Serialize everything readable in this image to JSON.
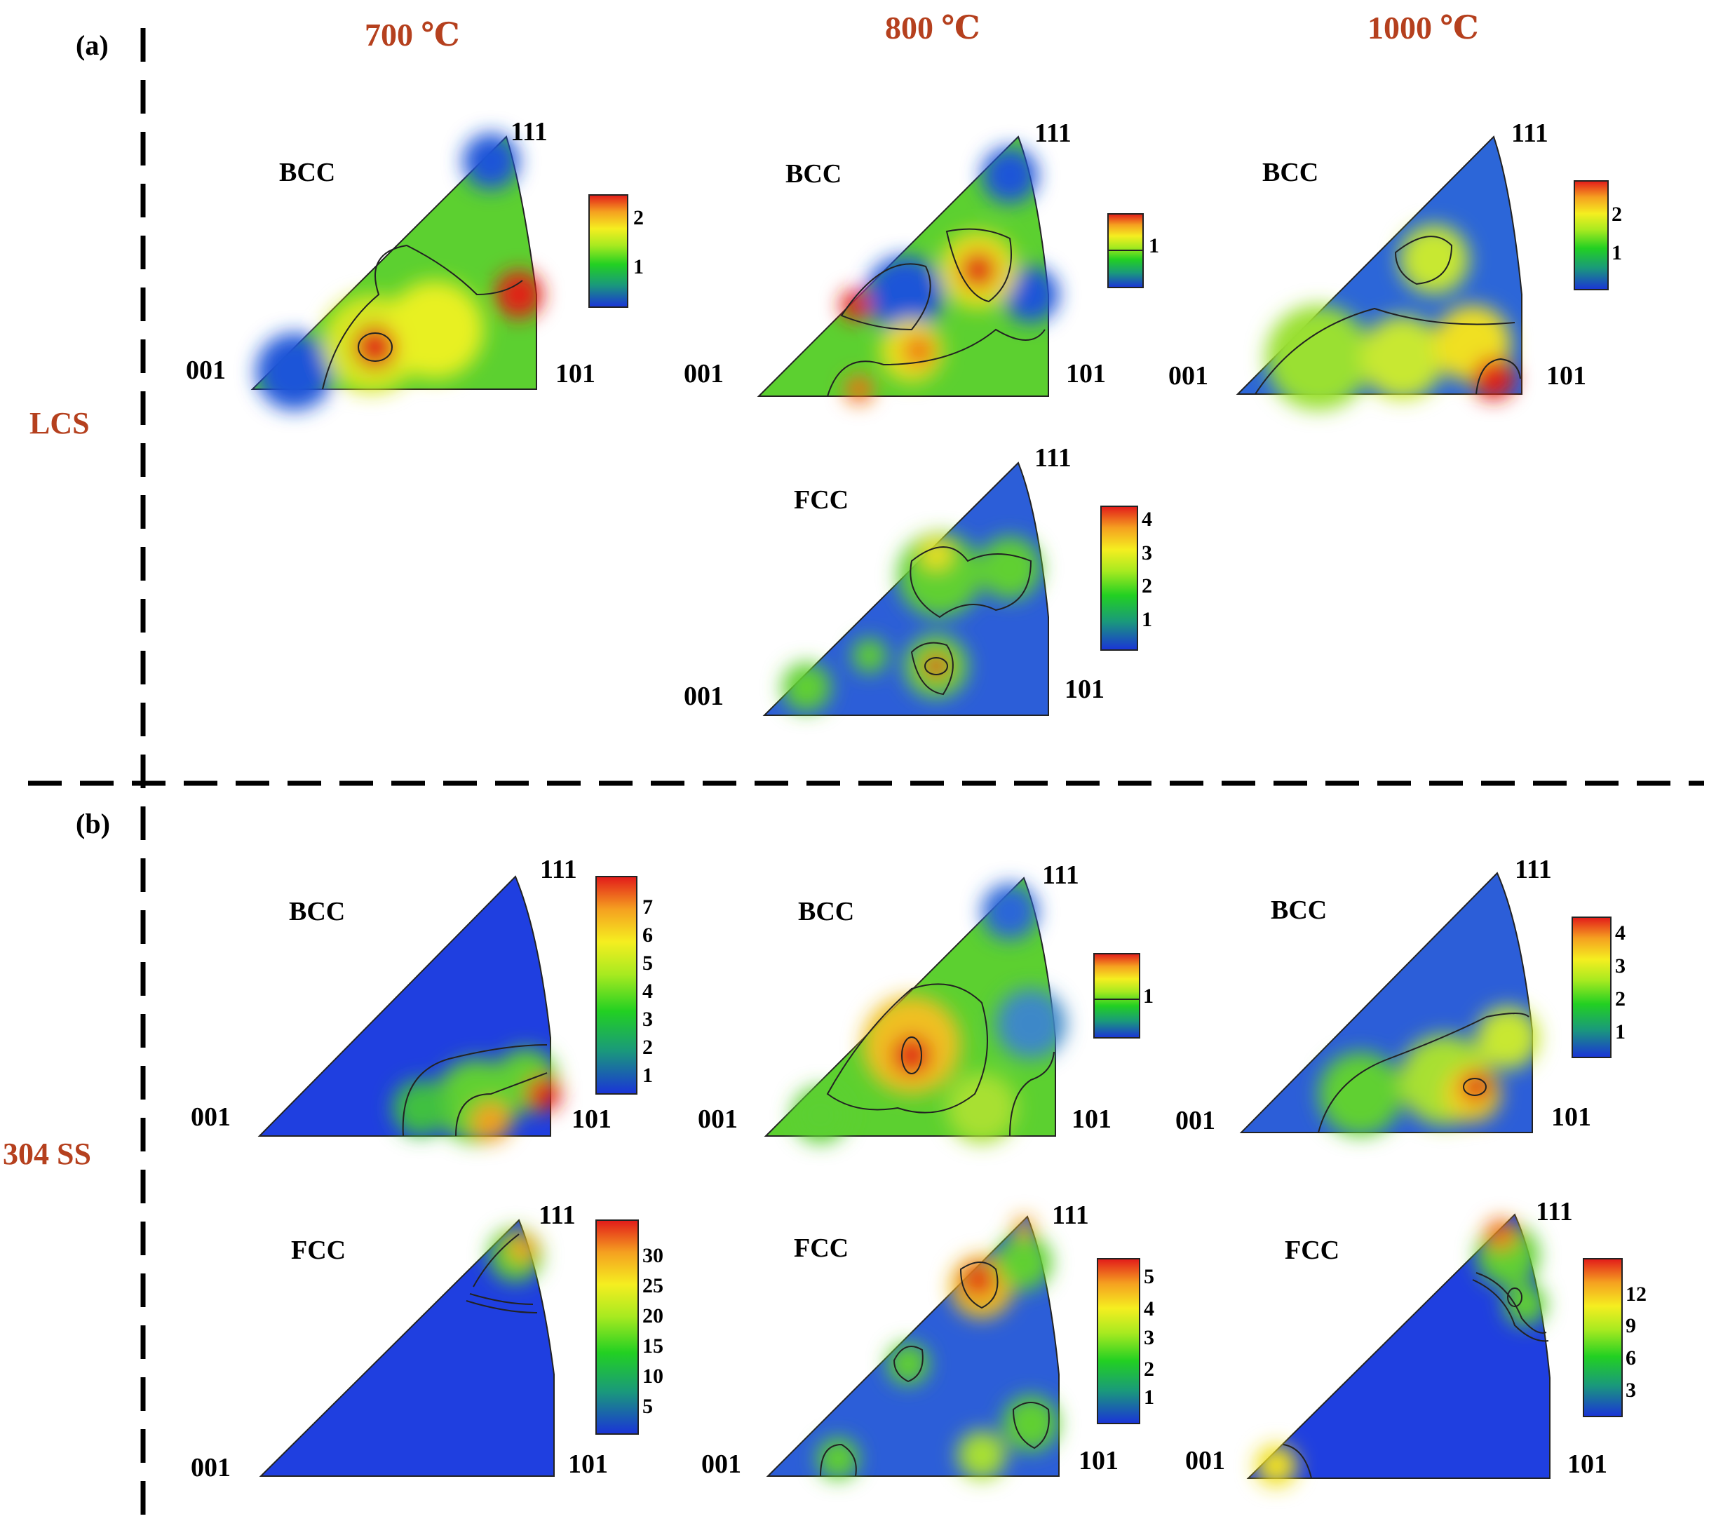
{
  "figure": {
    "panel_labels": {
      "a": "(a)",
      "b": "(b)"
    },
    "column_headers": [
      "700 ℃",
      "800 ℃",
      "1000 ℃"
    ],
    "row_labels": {
      "lcs": "LCS",
      "ss": "304 SS"
    },
    "colors": {
      "accent": "#b5401e",
      "text": "#000000",
      "blue": "#1f3fe0",
      "red": "#e0201a"
    }
  },
  "panels": [
    {
      "id": "lcs-700-bcc",
      "phase": "BCC",
      "corners": {
        "c001": "001",
        "c101": "101",
        "c111": "111"
      },
      "scale_ticks": [
        "2",
        "1"
      ]
    },
    {
      "id": "lcs-800-bcc",
      "phase": "BCC",
      "corners": {
        "c001": "001",
        "c101": "101",
        "c111": "111"
      },
      "scale_ticks": [
        "1"
      ]
    },
    {
      "id": "lcs-1000-bcc",
      "phase": "BCC",
      "corners": {
        "c001": "001",
        "c101": "101",
        "c111": "111"
      },
      "scale_ticks": [
        "2",
        "1"
      ]
    },
    {
      "id": "lcs-800-fcc",
      "phase": "FCC",
      "corners": {
        "c001": "001",
        "c101": "101",
        "c111": "111"
      },
      "scale_ticks": [
        "4",
        "3",
        "2",
        "1"
      ]
    },
    {
      "id": "ss-700-bcc",
      "phase": "BCC",
      "corners": {
        "c001": "001",
        "c101": "101",
        "c111": "111"
      },
      "scale_ticks": [
        "7",
        "6",
        "5",
        "4",
        "3",
        "2",
        "1"
      ]
    },
    {
      "id": "ss-800-bcc",
      "phase": "BCC",
      "corners": {
        "c001": "001",
        "c101": "101",
        "c111": "111"
      },
      "scale_ticks": [
        "1"
      ]
    },
    {
      "id": "ss-1000-bcc",
      "phase": "BCC",
      "corners": {
        "c001": "001",
        "c101": "101",
        "c111": "111"
      },
      "scale_ticks": [
        "4",
        "3",
        "2",
        "1"
      ]
    },
    {
      "id": "ss-700-fcc",
      "phase": "FCC",
      "corners": {
        "c001": "001",
        "c101": "101",
        "c111": "111"
      },
      "scale_ticks": [
        "30",
        "25",
        "20",
        "15",
        "10",
        "5"
      ]
    },
    {
      "id": "ss-800-fcc",
      "phase": "FCC",
      "corners": {
        "c001": "001",
        "c101": "101",
        "c111": "111"
      },
      "scale_ticks": [
        "5",
        "4",
        "3",
        "2",
        "1"
      ]
    },
    {
      "id": "ss-1000-fcc",
      "phase": "FCC",
      "corners": {
        "c001": "001",
        "c101": "101",
        "c111": "111"
      },
      "scale_ticks": [
        "12",
        "9",
        "6",
        "3"
      ]
    }
  ]
}
